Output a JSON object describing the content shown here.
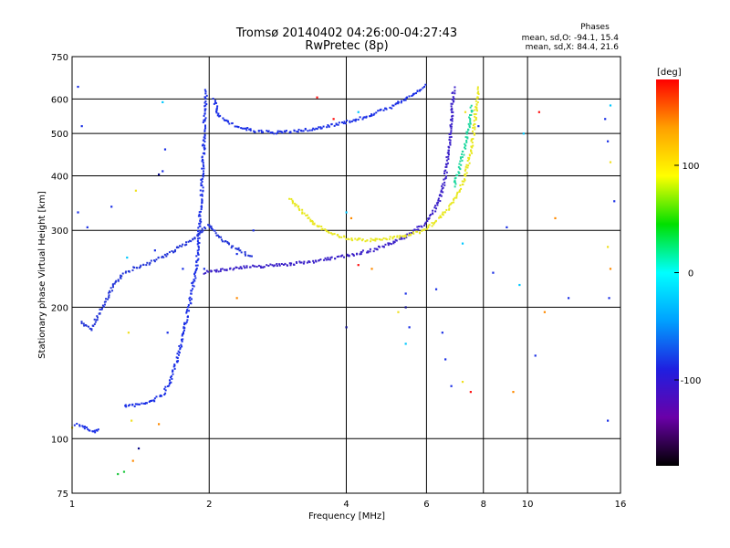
{
  "header": {
    "title_line1": "Tromsø 20140402 04:26:00-04:27:43",
    "title_line2": "RwPretec (8p)",
    "phases_heading": "Phases",
    "phases_o": "mean, sd,O: -94.1, 15.4",
    "phases_x": "mean, sd,X: 84.4, 21.6"
  },
  "chart_data": {
    "type": "scatter",
    "xlabel": "Frequency [MHz]",
    "ylabel": "Stationary phase Virtual Height [km]",
    "x_scale": "log",
    "y_scale": "log",
    "xlim": [
      1,
      16
    ],
    "ylim": [
      75,
      750
    ],
    "x_ticks": [
      1,
      2,
      4,
      6,
      8,
      10,
      16
    ],
    "y_ticks": [
      75,
      100,
      200,
      300,
      400,
      500,
      600,
      750
    ],
    "grid": true,
    "colorbar": {
      "label": "[deg]",
      "range": [
        -180,
        180
      ],
      "ticks": [
        100,
        0,
        -100
      ],
      "colormap": [
        "#000000",
        "#6a00a8",
        "#1f1fe0",
        "#00a0ff",
        "#00ffff",
        "#00e000",
        "#ffff00",
        "#ffa000",
        "#ff0000"
      ]
    },
    "series": [
      {
        "color": "#1a2fe6",
        "points": [
          [
            1.02,
            108
          ],
          [
            1.05,
            107
          ],
          [
            1.08,
            105
          ],
          [
            1.11,
            104
          ],
          [
            1.13,
            104
          ],
          [
            1.15,
            105
          ]
        ]
      },
      {
        "color": "#1a2fe6",
        "points": [
          [
            1.3,
            119
          ],
          [
            1.35,
            119
          ],
          [
            1.42,
            120
          ],
          [
            1.5,
            122
          ],
          [
            1.58,
            126
          ],
          [
            1.64,
            134
          ],
          [
            1.68,
            146
          ],
          [
            1.72,
            160
          ],
          [
            1.76,
            178
          ],
          [
            1.8,
            196
          ],
          [
            1.84,
            222
          ],
          [
            1.88,
            255
          ],
          [
            1.9,
            300
          ],
          [
            1.92,
            350
          ],
          [
            1.94,
            420
          ],
          [
            1.95,
            500
          ],
          [
            1.96,
            580
          ],
          [
            1.97,
            630
          ]
        ]
      },
      {
        "color": "#2436d8",
        "points": [
          [
            1.05,
            185
          ],
          [
            1.1,
            178
          ],
          [
            1.15,
            195
          ],
          [
            1.2,
            212
          ],
          [
            1.25,
            230
          ],
          [
            1.3,
            238
          ],
          [
            1.36,
            245
          ],
          [
            1.42,
            248
          ],
          [
            1.5,
            255
          ],
          [
            1.6,
            262
          ],
          [
            1.7,
            272
          ],
          [
            1.8,
            282
          ],
          [
            1.9,
            295
          ],
          [
            2.0,
            310
          ],
          [
            2.1,
            290
          ],
          [
            2.2,
            280
          ],
          [
            2.35,
            268
          ],
          [
            2.5,
            260
          ]
        ]
      },
      {
        "color": "#1a2fe6",
        "points": [
          [
            2.05,
            600
          ],
          [
            2.1,
            550
          ],
          [
            2.2,
            530
          ],
          [
            2.35,
            515
          ],
          [
            2.5,
            507
          ],
          [
            2.7,
            503
          ],
          [
            2.9,
            503
          ],
          [
            3.2,
            508
          ],
          [
            3.5,
            515
          ],
          [
            3.8,
            525
          ],
          [
            4.2,
            537
          ],
          [
            4.6,
            555
          ],
          [
            5.0,
            575
          ],
          [
            5.4,
            600
          ],
          [
            5.7,
            620
          ],
          [
            6.0,
            645
          ]
        ]
      },
      {
        "color": "#3a20c8",
        "points": [
          [
            1.95,
            240
          ],
          [
            2.05,
            242
          ],
          [
            2.2,
            245
          ],
          [
            2.4,
            247
          ],
          [
            2.6,
            248
          ],
          [
            2.8,
            250
          ],
          [
            3.0,
            251
          ],
          [
            3.2,
            253
          ],
          [
            3.5,
            256
          ],
          [
            3.8,
            260
          ],
          [
            4.2,
            265
          ],
          [
            4.6,
            271
          ],
          [
            5.0,
            279
          ],
          [
            5.4,
            290
          ],
          [
            5.8,
            305
          ],
          [
            6.1,
            320
          ],
          [
            6.4,
            350
          ],
          [
            6.6,
            400
          ],
          [
            6.7,
            450
          ],
          [
            6.8,
            520
          ],
          [
            6.85,
            600
          ],
          [
            6.9,
            640
          ]
        ]
      },
      {
        "color": "#e8e820",
        "points": [
          [
            3.0,
            355
          ],
          [
            3.2,
            330
          ],
          [
            3.4,
            312
          ],
          [
            3.6,
            300
          ],
          [
            3.8,
            292
          ],
          [
            4.0,
            288
          ],
          [
            4.3,
            285
          ],
          [
            4.6,
            285
          ],
          [
            5.0,
            288
          ],
          [
            5.4,
            292
          ],
          [
            5.8,
            298
          ],
          [
            6.2,
            310
          ],
          [
            6.6,
            330
          ],
          [
            7.0,
            360
          ],
          [
            7.3,
            400
          ],
          [
            7.5,
            450
          ],
          [
            7.65,
            520
          ],
          [
            7.75,
            600
          ],
          [
            7.8,
            640
          ]
        ]
      },
      {
        "color": "#20d8a0",
        "points": [
          [
            6.9,
            380
          ],
          [
            7.1,
            420
          ],
          [
            7.3,
            470
          ],
          [
            7.45,
            520
          ],
          [
            7.55,
            580
          ]
        ]
      },
      {
        "color": "#1a2fe6",
        "points": [
          [
            1.03,
            640
          ],
          [
            1.05,
            520
          ],
          [
            1.03,
            330
          ],
          [
            1.08,
            305
          ],
          [
            1.6,
            460
          ],
          [
            1.58,
            410
          ],
          [
            1.52,
            270
          ],
          [
            1.62,
            175
          ],
          [
            1.75,
            245
          ],
          [
            2.3,
            265
          ],
          [
            2.5,
            300
          ],
          [
            1.22,
            340
          ],
          [
            1.95,
            245
          ],
          [
            6.3,
            220
          ],
          [
            6.5,
            175
          ],
          [
            6.6,
            152
          ],
          [
            6.8,
            132
          ],
          [
            7.8,
            520
          ],
          [
            8.4,
            240
          ],
          [
            9.0,
            305
          ],
          [
            10.4,
            155
          ],
          [
            12.3,
            210
          ],
          [
            14.8,
            540
          ],
          [
            15.0,
            480
          ],
          [
            15.1,
            210
          ],
          [
            15.0,
            110
          ],
          [
            5.4,
            215
          ],
          [
            5.5,
            180
          ],
          [
            15.5,
            350
          ]
        ]
      },
      {
        "color": "#0a0a8a",
        "points": [
          [
            4.0,
            180
          ],
          [
            5.4,
            200
          ],
          [
            1.55,
            403
          ],
          [
            1.4,
            95
          ]
        ]
      },
      {
        "color": "#00c8ff",
        "points": [
          [
            1.58,
            590
          ],
          [
            5.4,
            165
          ],
          [
            4.25,
            560
          ],
          [
            9.8,
            500
          ],
          [
            9.6,
            225
          ],
          [
            15.2,
            580
          ],
          [
            4.0,
            330
          ],
          [
            1.32,
            260
          ],
          [
            7.2,
            280
          ]
        ]
      },
      {
        "color": "#f0e020",
        "points": [
          [
            1.38,
            370
          ],
          [
            1.33,
            175
          ],
          [
            1.35,
            110
          ],
          [
            5.2,
            195
          ],
          [
            7.2,
            135
          ],
          [
            7.3,
            560
          ],
          [
            15.2,
            430
          ],
          [
            3.4,
            310
          ],
          [
            1.0,
            106
          ],
          [
            15.0,
            275
          ]
        ]
      },
      {
        "color": "#ff8a00",
        "points": [
          [
            1.55,
            108
          ],
          [
            1.36,
            89
          ],
          [
            4.55,
            245
          ],
          [
            9.3,
            128
          ],
          [
            11.5,
            320
          ],
          [
            10.9,
            195
          ],
          [
            2.3,
            210
          ],
          [
            4.1,
            320
          ],
          [
            15.2,
            245
          ]
        ]
      },
      {
        "color": "#ff1010",
        "points": [
          [
            7.5,
            128
          ],
          [
            3.75,
            540
          ],
          [
            3.45,
            605
          ],
          [
            10.6,
            560
          ],
          [
            4.25,
            250
          ]
        ]
      },
      {
        "color": "#20c840",
        "points": [
          [
            1.26,
            83
          ],
          [
            1.3,
            84
          ]
        ]
      }
    ]
  }
}
